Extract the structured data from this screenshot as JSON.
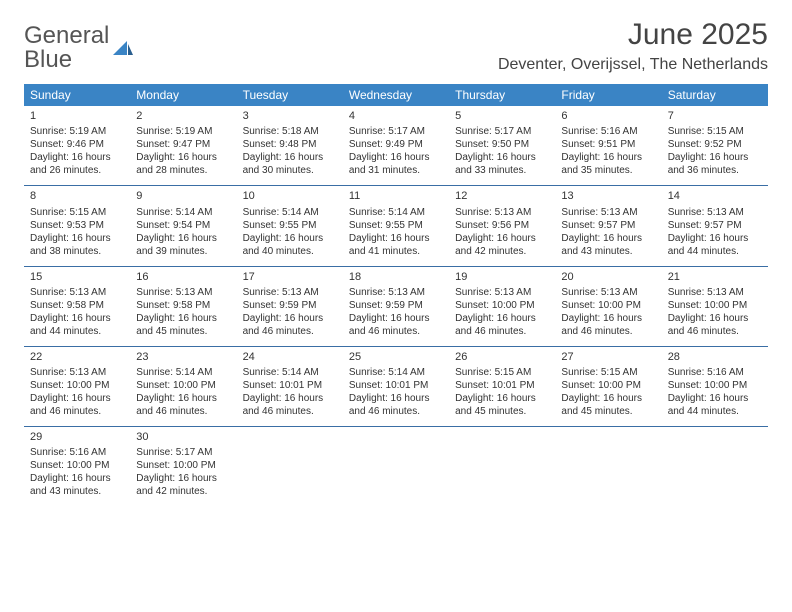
{
  "logo": {
    "word1": "General",
    "word2": "Blue"
  },
  "title": "June 2025",
  "location": "Deventer, Overijssel, The Netherlands",
  "colors": {
    "header_bg": "#3a84c5",
    "header_text": "#ffffff",
    "sep": "#3a6ea5",
    "body_text": "#333333"
  },
  "day_headers": [
    "Sunday",
    "Monday",
    "Tuesday",
    "Wednesday",
    "Thursday",
    "Friday",
    "Saturday"
  ],
  "weeks": [
    [
      {
        "n": "1",
        "sr": "5:19 AM",
        "ss": "9:46 PM",
        "dl": "16 hours and 26 minutes."
      },
      {
        "n": "2",
        "sr": "5:19 AM",
        "ss": "9:47 PM",
        "dl": "16 hours and 28 minutes."
      },
      {
        "n": "3",
        "sr": "5:18 AM",
        "ss": "9:48 PM",
        "dl": "16 hours and 30 minutes."
      },
      {
        "n": "4",
        "sr": "5:17 AM",
        "ss": "9:49 PM",
        "dl": "16 hours and 31 minutes."
      },
      {
        "n": "5",
        "sr": "5:17 AM",
        "ss": "9:50 PM",
        "dl": "16 hours and 33 minutes."
      },
      {
        "n": "6",
        "sr": "5:16 AM",
        "ss": "9:51 PM",
        "dl": "16 hours and 35 minutes."
      },
      {
        "n": "7",
        "sr": "5:15 AM",
        "ss": "9:52 PM",
        "dl": "16 hours and 36 minutes."
      }
    ],
    [
      {
        "n": "8",
        "sr": "5:15 AM",
        "ss": "9:53 PM",
        "dl": "16 hours and 38 minutes."
      },
      {
        "n": "9",
        "sr": "5:14 AM",
        "ss": "9:54 PM",
        "dl": "16 hours and 39 minutes."
      },
      {
        "n": "10",
        "sr": "5:14 AM",
        "ss": "9:55 PM",
        "dl": "16 hours and 40 minutes."
      },
      {
        "n": "11",
        "sr": "5:14 AM",
        "ss": "9:55 PM",
        "dl": "16 hours and 41 minutes."
      },
      {
        "n": "12",
        "sr": "5:13 AM",
        "ss": "9:56 PM",
        "dl": "16 hours and 42 minutes."
      },
      {
        "n": "13",
        "sr": "5:13 AM",
        "ss": "9:57 PM",
        "dl": "16 hours and 43 minutes."
      },
      {
        "n": "14",
        "sr": "5:13 AM",
        "ss": "9:57 PM",
        "dl": "16 hours and 44 minutes."
      }
    ],
    [
      {
        "n": "15",
        "sr": "5:13 AM",
        "ss": "9:58 PM",
        "dl": "16 hours and 44 minutes."
      },
      {
        "n": "16",
        "sr": "5:13 AM",
        "ss": "9:58 PM",
        "dl": "16 hours and 45 minutes."
      },
      {
        "n": "17",
        "sr": "5:13 AM",
        "ss": "9:59 PM",
        "dl": "16 hours and 46 minutes."
      },
      {
        "n": "18",
        "sr": "5:13 AM",
        "ss": "9:59 PM",
        "dl": "16 hours and 46 minutes."
      },
      {
        "n": "19",
        "sr": "5:13 AM",
        "ss": "10:00 PM",
        "dl": "16 hours and 46 minutes."
      },
      {
        "n": "20",
        "sr": "5:13 AM",
        "ss": "10:00 PM",
        "dl": "16 hours and 46 minutes."
      },
      {
        "n": "21",
        "sr": "5:13 AM",
        "ss": "10:00 PM",
        "dl": "16 hours and 46 minutes."
      }
    ],
    [
      {
        "n": "22",
        "sr": "5:13 AM",
        "ss": "10:00 PM",
        "dl": "16 hours and 46 minutes."
      },
      {
        "n": "23",
        "sr": "5:14 AM",
        "ss": "10:00 PM",
        "dl": "16 hours and 46 minutes."
      },
      {
        "n": "24",
        "sr": "5:14 AM",
        "ss": "10:01 PM",
        "dl": "16 hours and 46 minutes."
      },
      {
        "n": "25",
        "sr": "5:14 AM",
        "ss": "10:01 PM",
        "dl": "16 hours and 46 minutes."
      },
      {
        "n": "26",
        "sr": "5:15 AM",
        "ss": "10:01 PM",
        "dl": "16 hours and 45 minutes."
      },
      {
        "n": "27",
        "sr": "5:15 AM",
        "ss": "10:00 PM",
        "dl": "16 hours and 45 minutes."
      },
      {
        "n": "28",
        "sr": "5:16 AM",
        "ss": "10:00 PM",
        "dl": "16 hours and 44 minutes."
      }
    ],
    [
      {
        "n": "29",
        "sr": "5:16 AM",
        "ss": "10:00 PM",
        "dl": "16 hours and 43 minutes."
      },
      {
        "n": "30",
        "sr": "5:17 AM",
        "ss": "10:00 PM",
        "dl": "16 hours and 42 minutes."
      },
      null,
      null,
      null,
      null,
      null
    ]
  ],
  "labels": {
    "sunrise": "Sunrise: ",
    "sunset": "Sunset: ",
    "daylight": "Daylight: "
  }
}
